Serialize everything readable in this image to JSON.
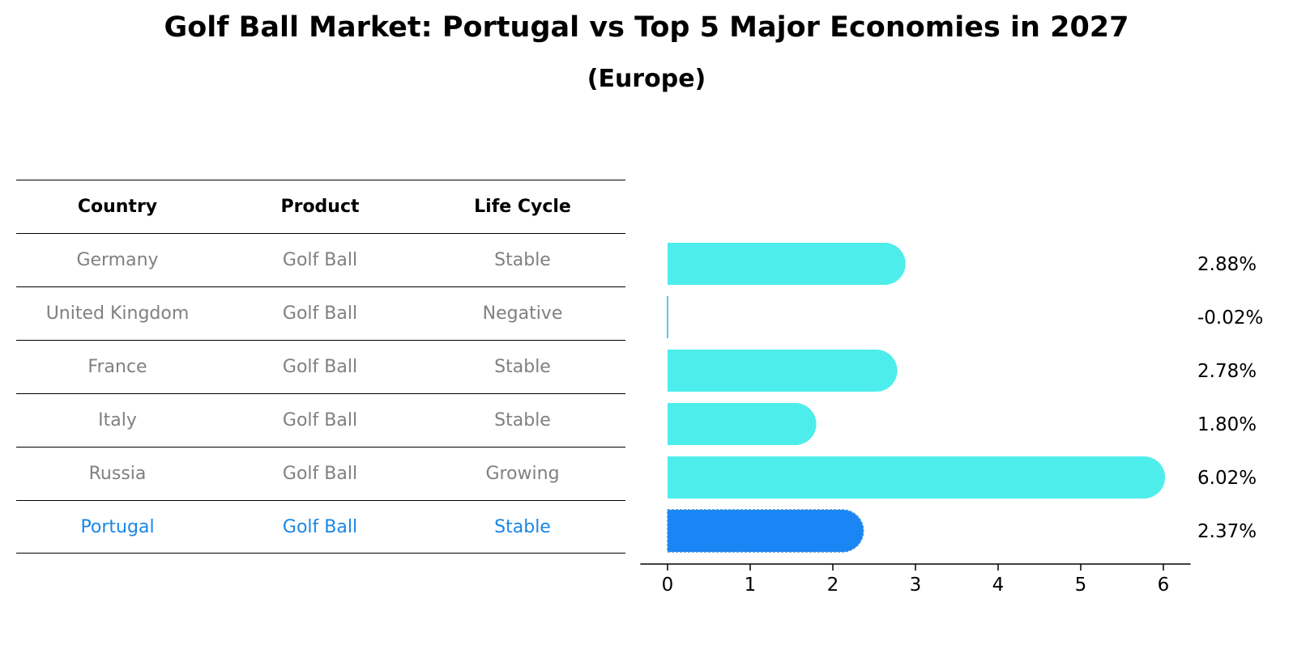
{
  "title": "Golf Ball Market: Portugal vs Top 5 Major Economies in 2027",
  "subtitle": "(Europe)",
  "table": {
    "headers": [
      "Country",
      "Product",
      "Life Cycle"
    ],
    "rows": [
      {
        "country": "Germany",
        "product": "Golf Ball",
        "life_cycle": "Stable"
      },
      {
        "country": "United Kingdom",
        "product": "Golf Ball",
        "life_cycle": "Negative"
      },
      {
        "country": "France",
        "product": "Golf Ball",
        "life_cycle": "Stable"
      },
      {
        "country": "Italy",
        "product": "Golf Ball",
        "life_cycle": "Stable"
      },
      {
        "country": "Russia",
        "product": "Golf Ball",
        "life_cycle": "Growing"
      },
      {
        "country": "Portugal",
        "product": "Golf Ball",
        "life_cycle": "Stable"
      }
    ]
  },
  "chart_data": {
    "type": "bar",
    "orientation": "horizontal",
    "categories": [
      "Germany",
      "United Kingdom",
      "France",
      "Italy",
      "Russia",
      "Portugal"
    ],
    "values": [
      2.88,
      -0.02,
      2.78,
      1.8,
      6.02,
      2.37
    ],
    "value_labels": [
      "2.88%",
      "-0.02%",
      "2.78%",
      "1.80%",
      "6.02%",
      "2.37%"
    ],
    "highlight": "Portugal",
    "xlim": [
      -0.33,
      6.33
    ],
    "xticks": [
      0,
      1,
      2,
      3,
      4,
      5,
      6
    ],
    "colors": {
      "default": "#4dedec",
      "highlight": "#1a86f5",
      "negative": "#5dc8f0"
    }
  }
}
